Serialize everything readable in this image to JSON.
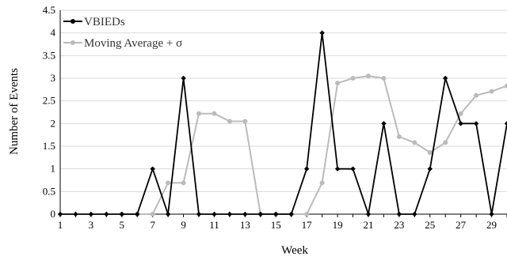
{
  "chart_data": {
    "type": "line",
    "title": "",
    "xlabel": "Week",
    "ylabel": "Number of Events",
    "ylim": [
      0,
      4.5
    ],
    "yticks": [
      "0",
      "0.5",
      "1",
      "1.5",
      "2",
      "2.5",
      "3",
      "3.5",
      "4",
      "4.5"
    ],
    "xlim": [
      1,
      30
    ],
    "xticks": [
      "1",
      "3",
      "5",
      "7",
      "9",
      "11",
      "13",
      "15",
      "17",
      "19",
      "21",
      "23",
      "25",
      "27",
      "29"
    ],
    "grid": "horizontal",
    "legend_position": "top-left",
    "x": [
      1,
      2,
      3,
      4,
      5,
      6,
      7,
      8,
      9,
      10,
      11,
      12,
      13,
      14,
      15,
      16,
      17,
      18,
      19,
      20,
      21,
      22,
      23,
      24,
      25,
      26,
      27,
      28,
      29,
      30
    ],
    "series": [
      {
        "name": "VBIEDs",
        "color": "#000000",
        "marker": "diamond",
        "values": [
          0,
          0,
          0,
          0,
          0,
          0,
          1,
          0,
          3,
          0,
          0,
          0,
          0,
          0,
          0,
          0,
          1,
          4,
          1,
          1,
          0,
          2,
          0,
          0,
          1,
          3,
          2,
          2,
          0,
          2
        ]
      },
      {
        "name": "Moving Average + σ",
        "color": "#bbbbbb",
        "marker": "circle",
        "values": [
          null,
          null,
          null,
          null,
          0,
          0,
          0,
          0.69,
          0.69,
          2.22,
          2.22,
          2.05,
          2.05,
          0,
          0,
          0,
          0,
          0.69,
          2.89,
          3.0,
          3.05,
          3.0,
          1.71,
          1.58,
          1.36,
          1.58,
          2.22,
          2.62,
          2.71,
          2.83
        ]
      }
    ]
  }
}
